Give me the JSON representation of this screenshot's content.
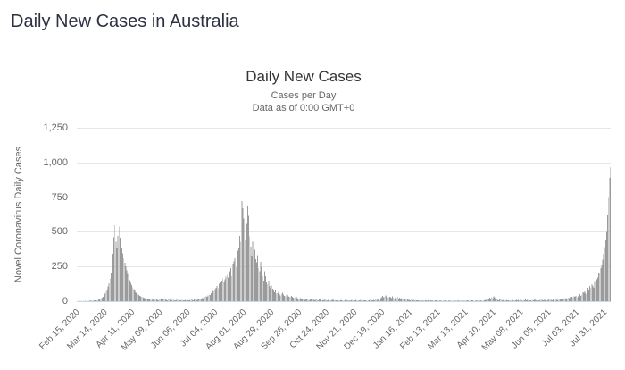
{
  "page": {
    "title": "Daily New Cases in Australia"
  },
  "chart_data": {
    "type": "bar",
    "title": "Daily New Cases",
    "subtitle1": "Cases per Day",
    "subtitle2": "Data as of 0:00 GMT+0",
    "ylabel": "Novel Coronavirus Daily Cases",
    "xlabel": "",
    "legend": "off",
    "grid": "horizontal",
    "ylim": [
      0,
      1250
    ],
    "y_ticks": [
      0,
      250,
      500,
      750,
      1000,
      1250
    ],
    "x_tick_labels": [
      "Feb 15, 2020",
      "Mar 14, 2020",
      "Apr 11, 2020",
      "May 09, 2020",
      "Jun 06, 2020",
      "Jul 04, 2020",
      "Aug 01, 2020",
      "Aug 29, 2020",
      "Sep 26, 2020",
      "Oct 24, 2020",
      "Nov 21, 2020",
      "Dec 19, 2020",
      "Jan 16, 2021",
      "Feb 13, 2021",
      "Mar 13, 2021",
      "Apr 10, 2021",
      "May 08, 2021",
      "Jun 05, 2021",
      "Jul 03, 2021",
      "Jul 31, 2021"
    ],
    "tick_interval_days": 28,
    "x_start": "Feb 15, 2020",
    "x_end": "Aug 06, 2021",
    "colors": {
      "bar": "#9b9b9b",
      "grid": "#e6e6e6",
      "axis_line": "#ccd6eb",
      "label": "#666666",
      "title": "#333333",
      "heading": "#2d3142"
    },
    "values": [
      0,
      1,
      0,
      2,
      1,
      0,
      3,
      1,
      2,
      1,
      4,
      2,
      3,
      2,
      5,
      3,
      4,
      6,
      5,
      7,
      8,
      10,
      12,
      16,
      20,
      26,
      33,
      42,
      54,
      68,
      85,
      105,
      130,
      165,
      205,
      255,
      340,
      460,
      548,
      430,
      385,
      470,
      537,
      458,
      420,
      380,
      345,
      310,
      278,
      250,
      222,
      196,
      172,
      150,
      132,
      115,
      100,
      88,
      76,
      66,
      58,
      51,
      45,
      40,
      35,
      31,
      28,
      25,
      22,
      20,
      18,
      16,
      15,
      13,
      12,
      11,
      12,
      10,
      14,
      9,
      16,
      11,
      8,
      13,
      18,
      22,
      17,
      12,
      9,
      14,
      11,
      8,
      12,
      15,
      10,
      7,
      11,
      13,
      8,
      6,
      10,
      12,
      9,
      7,
      8,
      11,
      9,
      8,
      6,
      9,
      7,
      11,
      8,
      6,
      10,
      13,
      9,
      7,
      12,
      15,
      11,
      9,
      14,
      18,
      16,
      20,
      24,
      21,
      27,
      31,
      37,
      33,
      41,
      49,
      44,
      57,
      64,
      75,
      70,
      86,
      96,
      108,
      92,
      127,
      134,
      115,
      149,
      165,
      140,
      158,
      177,
      191,
      172,
      210,
      216,
      238,
      179,
      270,
      288,
      310,
      245,
      336,
      363,
      385,
      470,
      428,
      721,
      671,
      596,
      439,
      471,
      557,
      684,
      615,
      466,
      394,
      330,
      428,
      471,
      372,
      303,
      279,
      331,
      240,
      216,
      282,
      246,
      182,
      148,
      216,
      179,
      139,
      124,
      149,
      110,
      95,
      113,
      90,
      76,
      63,
      76,
      55,
      59,
      68,
      50,
      41,
      55,
      62,
      47,
      39,
      35,
      46,
      49,
      36,
      32,
      28,
      39,
      33,
      26,
      21,
      28,
      31,
      23,
      19,
      16,
      22,
      17,
      14,
      12,
      15,
      10,
      13,
      17,
      11,
      8,
      14,
      12,
      9,
      16,
      11,
      8,
      13,
      10,
      7,
      12,
      15,
      9,
      6,
      11,
      8,
      14,
      10,
      7,
      9,
      12,
      8,
      6,
      10,
      13,
      7,
      9,
      6,
      11,
      8,
      5,
      7,
      10,
      6,
      4,
      8,
      11,
      7,
      5,
      9,
      6,
      4,
      7,
      10,
      5,
      8,
      6,
      9,
      4,
      7,
      5,
      8,
      10,
      6,
      4,
      7,
      5,
      8,
      6,
      4,
      7,
      9,
      5,
      8,
      6,
      10,
      7,
      12,
      9,
      15,
      11,
      8,
      23,
      30,
      38,
      28,
      33,
      41,
      35,
      29,
      26,
      33,
      28,
      22,
      35,
      26,
      20,
      28,
      24,
      31,
      20,
      26,
      17,
      23,
      14,
      19,
      12,
      16,
      10,
      13,
      9,
      11,
      8,
      12,
      7,
      10,
      6,
      9,
      5,
      8,
      6,
      4,
      7,
      5,
      3,
      6,
      4,
      5,
      6,
      4,
      7,
      9,
      5,
      8,
      4,
      6,
      3,
      5,
      7,
      4,
      6,
      3,
      5,
      2,
      4,
      6,
      3,
      5,
      2,
      4,
      3,
      5,
      2,
      4,
      3,
      2,
      4,
      3,
      5,
      2,
      6,
      4,
      3,
      7,
      5,
      4,
      2,
      6,
      3,
      5,
      8,
      4,
      6,
      3,
      5,
      7,
      4,
      2,
      5,
      3,
      6,
      4,
      2,
      5,
      3,
      4,
      6,
      8,
      12,
      6,
      15,
      20,
      26,
      18,
      30,
      24,
      35,
      28,
      20,
      15,
      10,
      7,
      12,
      16,
      9,
      6,
      11,
      7,
      5,
      9,
      6,
      8,
      4,
      7,
      5,
      10,
      6,
      8,
      5,
      11,
      7,
      9,
      6,
      12,
      8,
      5,
      10,
      7,
      13,
      6,
      9,
      11,
      7,
      5,
      8,
      10,
      6,
      12,
      9,
      7,
      14,
      8,
      6,
      10,
      13,
      9,
      7,
      11,
      9,
      12,
      8,
      10,
      14,
      9,
      11,
      7,
      13,
      10,
      8,
      15,
      11,
      9,
      12,
      16,
      13,
      10,
      18,
      21,
      15,
      24,
      19,
      27,
      22,
      30,
      25,
      33,
      28,
      35,
      31,
      38,
      27,
      35,
      44,
      50,
      38,
      45,
      65,
      60,
      72,
      55,
      89,
      97,
      78,
      111,
      97,
      124,
      110,
      98,
      145,
      136,
      158,
      172,
      199,
      207,
      239,
      260,
      300,
      340,
      390,
      440,
      500,
      620,
      750,
      890,
      965
    ]
  }
}
